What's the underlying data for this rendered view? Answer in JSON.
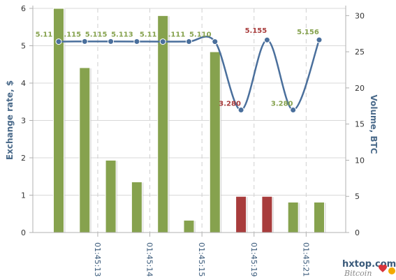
{
  "chart_data": {
    "type": "bar+line",
    "ylabel": "Exchange rate, $",
    "y2label": "Volume, BTC",
    "ylim": [
      0,
      6
    ],
    "y2lim": [
      0,
      31
    ],
    "yticks": [
      "0",
      "1",
      "2",
      "3",
      "4",
      "5",
      "6"
    ],
    "y2ticks": [
      "0",
      "5",
      "10",
      "15",
      "20",
      "25",
      "30"
    ],
    "xticks": [
      "01:45:13",
      "01:45:14",
      "01:45:15",
      "01:45:19",
      "01:45:21"
    ],
    "grid": true,
    "volume_series": {
      "values": [
        31.0,
        22.8,
        10.0,
        7.0,
        30.0,
        1.7,
        25.0,
        5.0,
        5.0,
        4.2,
        4.2
      ],
      "colors": [
        "#86a24e",
        "#86a24e",
        "#86a24e",
        "#86a24e",
        "#86a24e",
        "#86a24e",
        "#86a24e",
        "#a83c3c",
        "#a83c3c",
        "#86a24e",
        "#86a24e"
      ]
    },
    "rate_series": {
      "values": [
        5.11,
        5.115,
        5.115,
        5.113,
        5.11,
        5.111,
        5.11,
        3.28,
        5.155,
        3.28,
        5.156
      ],
      "labels": [
        "5.11",
        "5.115",
        "5.115",
        "5.113",
        "5.11",
        "5.111",
        "5.110",
        "3.280",
        "5.155",
        "3.280",
        "5.156"
      ],
      "label_colors": [
        "#86a24e",
        "#86a24e",
        "#86a24e",
        "#86a24e",
        "#86a24e",
        "#86a24e",
        "#86a24e",
        "#a83c3c",
        "#a83c3c",
        "#86a24e",
        "#86a24e"
      ],
      "line_color": "#4a6f9c"
    }
  },
  "watermark": {
    "site": "hxtop.com",
    "tagline": "Bitcoin"
  }
}
